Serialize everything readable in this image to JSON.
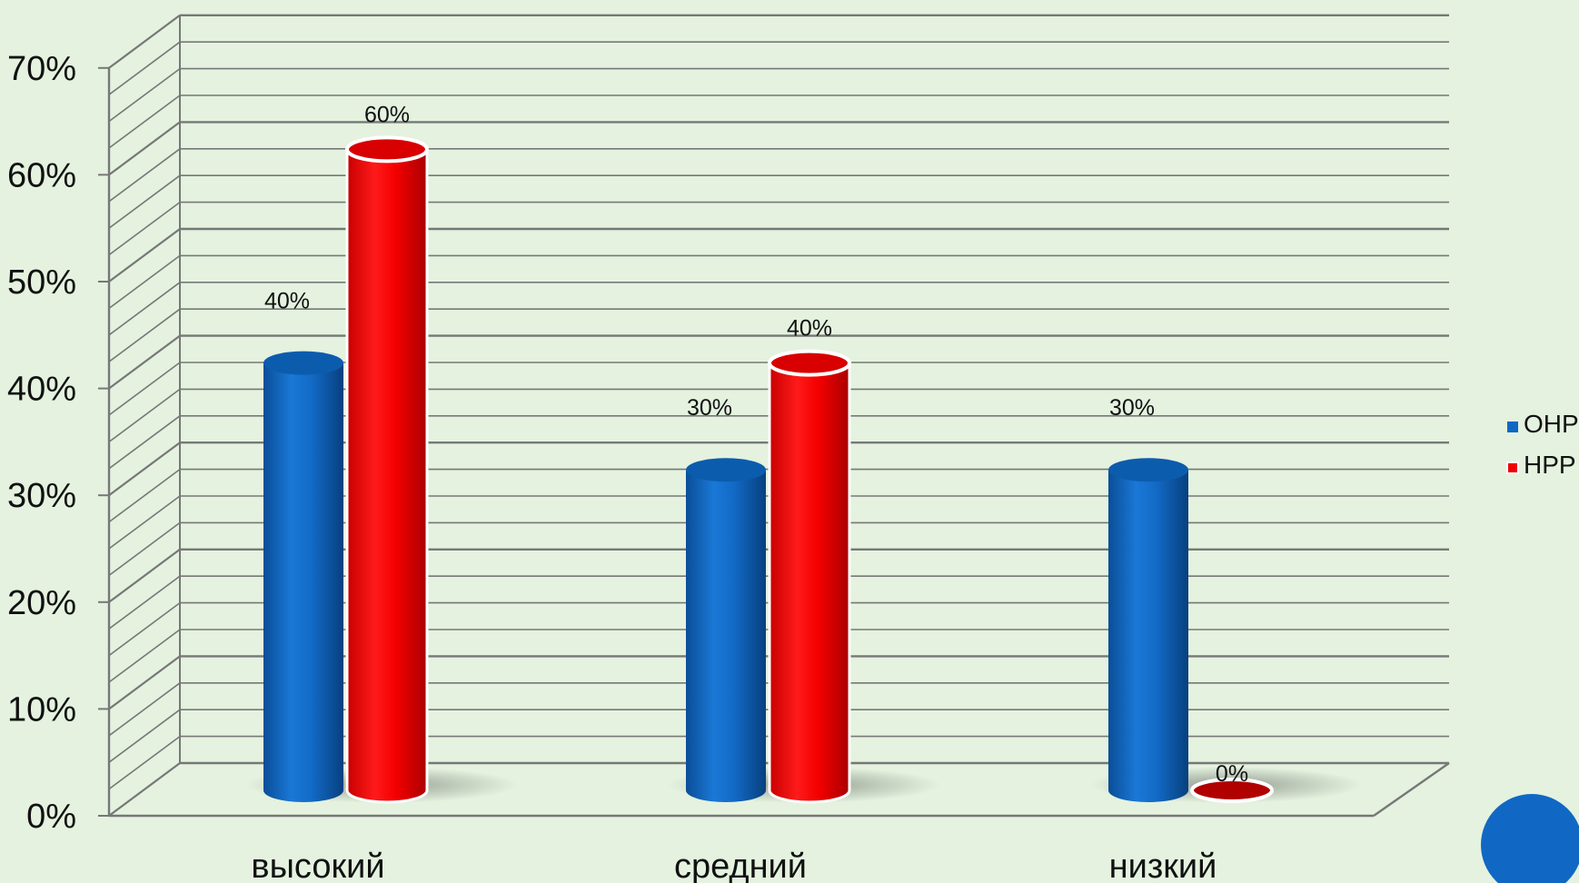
{
  "chart_data": {
    "type": "bar",
    "categories": [
      "высокий",
      "средний",
      "низкий"
    ],
    "series": [
      {
        "name": "ОНР",
        "values": [
          40,
          30,
          30
        ],
        "labels": [
          "40%",
          "30%",
          "30%"
        ],
        "color": "#1068c4"
      },
      {
        "name": "НРР",
        "values": [
          60,
          40,
          0
        ],
        "labels": [
          "60%",
          "40%",
          "0%"
        ],
        "color": "#f00000"
      }
    ],
    "ylim": [
      0,
      70
    ],
    "yticks": [
      "0%",
      "10%",
      "20%",
      "30%",
      "40%",
      "50%",
      "60%",
      "70%"
    ],
    "grid": true,
    "legend_position": "right",
    "style": "3d-cylinder",
    "colors": {
      "background": "#e4f2df",
      "grid": "#777777",
      "red_dark": "#b00000"
    }
  }
}
